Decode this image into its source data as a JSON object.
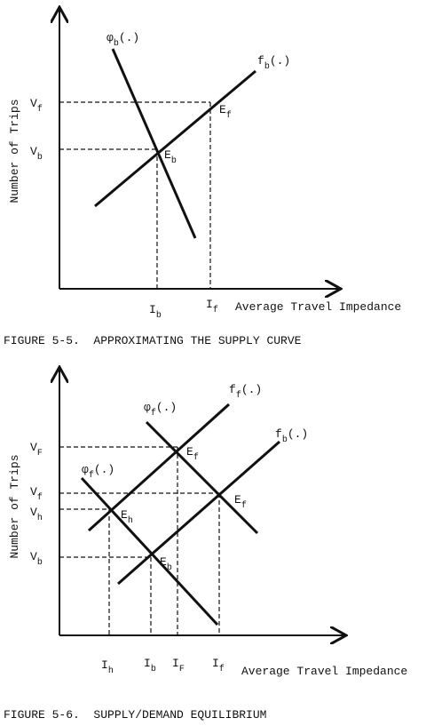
{
  "figures": [
    {
      "y_axis_label": "Number of Trips",
      "x_axis_label": "Average Travel Impedance",
      "caption": "FIGURE 5-5.  APPROXIMATING THE SUPPLY CURVE",
      "labels": [
        {
          "text": "V",
          "sub": "f"
        },
        {
          "text": "V",
          "sub": "b"
        },
        {
          "text": "φ",
          "sub": "b",
          "tail": "(.)"
        },
        {
          "text": "f",
          "sub": "b",
          "tail": "(.)"
        },
        {
          "text": "E",
          "sub": "b"
        },
        {
          "text": "E",
          "sub": "f"
        },
        {
          "text": "I",
          "sub": "b"
        },
        {
          "text": "I",
          "sub": "f"
        }
      ]
    },
    {
      "y_axis_label": "Number of Trips",
      "x_axis_label": "Average Travel Impedance",
      "caption": "FIGURE 5-6.  SUPPLY/DEMAND EQUILIBRIUM",
      "labels": [
        {
          "text": "V",
          "sub": "F"
        },
        {
          "text": "V",
          "sub": "f"
        },
        {
          "text": "V",
          "sub": "h"
        },
        {
          "text": "V",
          "sub": "b"
        },
        {
          "text": "φ",
          "sub": "f",
          "tail": "(.)"
        },
        {
          "text": "f",
          "sub": "f",
          "tail": "(.)"
        },
        {
          "text": "φ",
          "sub": "f",
          "tail": "(.)"
        },
        {
          "text": "f",
          "sub": "b",
          "tail": "(.)"
        },
        {
          "text": "E",
          "sub": "f"
        },
        {
          "text": "E",
          "sub": "f"
        },
        {
          "text": "E",
          "sub": "h"
        },
        {
          "text": "E",
          "sub": "b"
        },
        {
          "text": "I",
          "sub": "h"
        },
        {
          "text": "I",
          "sub": "b"
        },
        {
          "text": "I",
          "sub": "F"
        },
        {
          "text": "I",
          "sub": "f"
        }
      ]
    }
  ]
}
